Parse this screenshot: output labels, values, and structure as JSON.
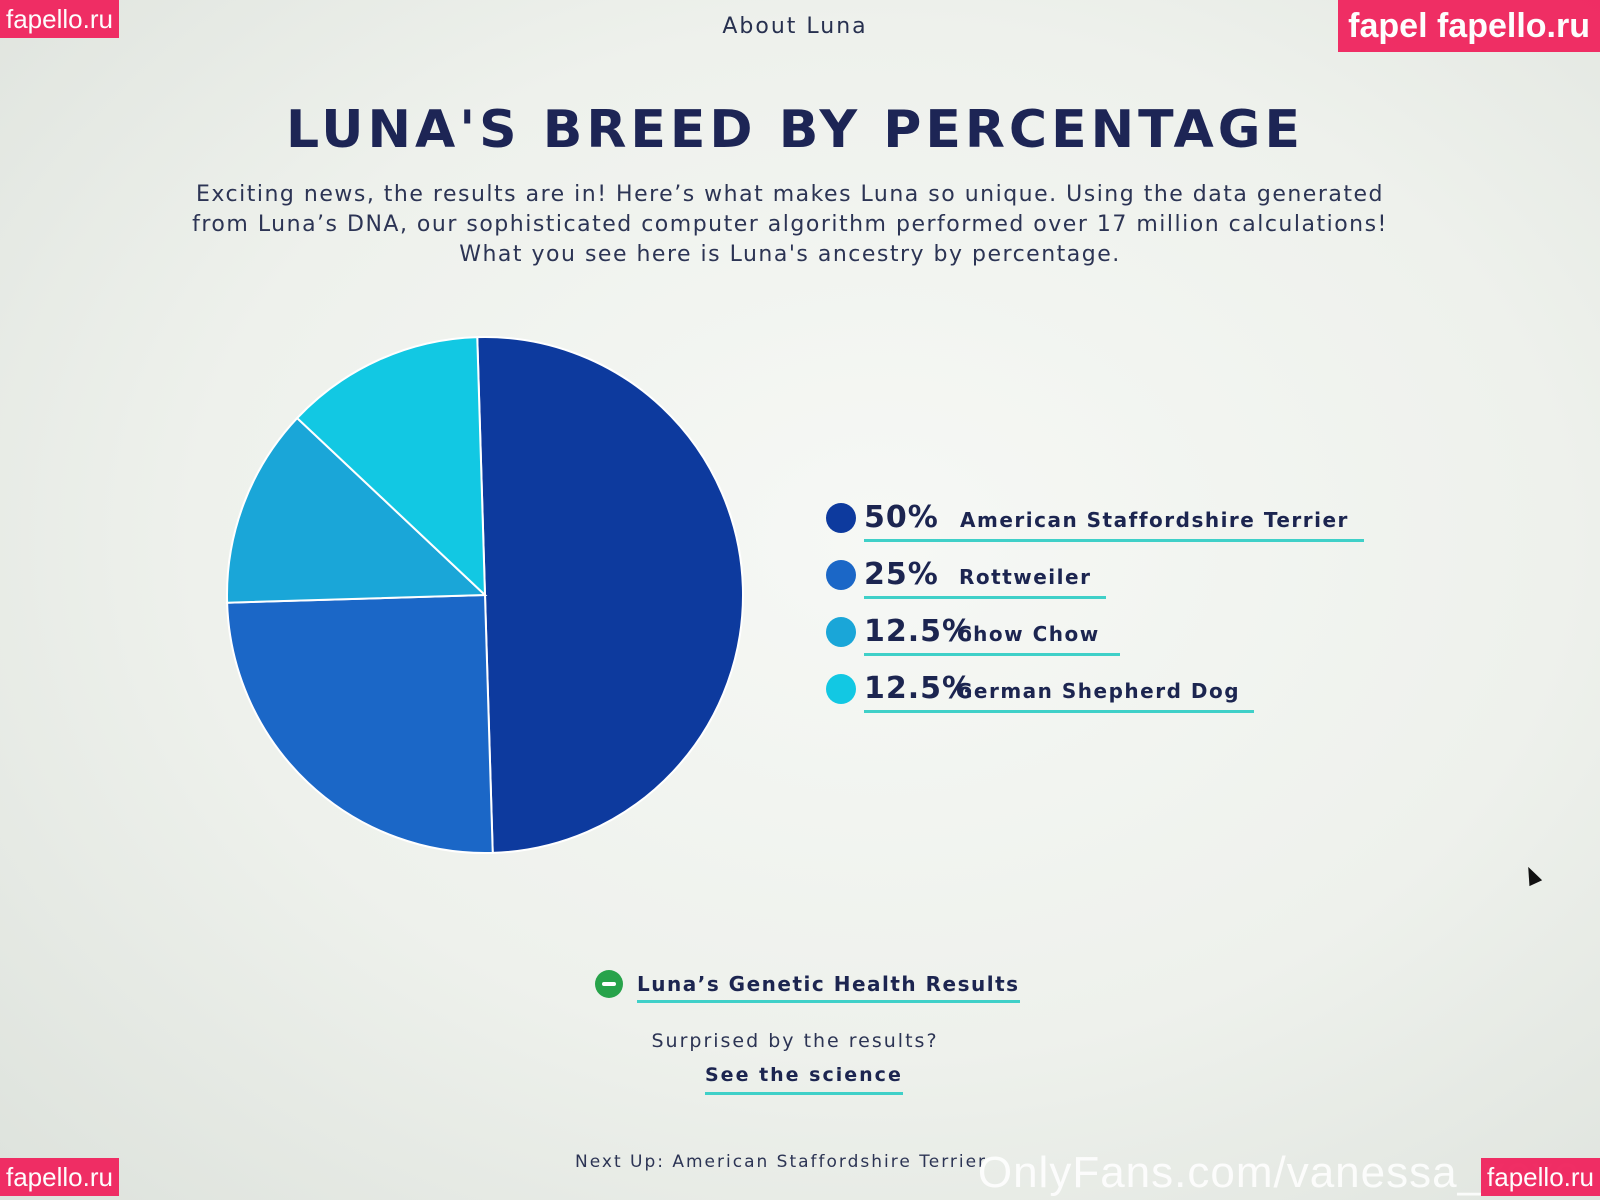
{
  "watermarks": {
    "top_left": "fapello.ru",
    "top_right": "fapel fapello.ru",
    "bottom_left": "fapello.ru",
    "bottom_right": "fapello.ru",
    "footer": "OnlyFans.com/vanessa_xoxo"
  },
  "nav": {
    "title": "About Luna"
  },
  "page": {
    "title": "LUNA'S BREED BY PERCENTAGE",
    "intro_line1": "Exciting news, the results are in! Here’s what makes Luna so unique. Using the data generated",
    "intro_line2": "from Luna’s DNA, our sophisticated computer algorithm performed over 17 million calculations!",
    "intro_line3": "What you see here is Luna's ancestry by percentage."
  },
  "chart_data": {
    "type": "pie",
    "categories": [
      "American Staffordshire Terrier",
      "Rottweiler",
      "Chow Chow",
      "German Shepherd Dog"
    ],
    "values": [
      50,
      25,
      12.5,
      12.5
    ],
    "labels": [
      "50%",
      "25%",
      "12.5%",
      "12.5%"
    ],
    "colors": [
      "#0d3a9e",
      "#1b67c7",
      "#1aa6d8",
      "#12c8e3"
    ],
    "legend_position": "right"
  },
  "links": {
    "health": "Luna’s Genetic Health Results",
    "surprised": "Surprised by the results?",
    "science": "See the science",
    "next_up": "Next Up: American Staffordshire Terrier"
  }
}
